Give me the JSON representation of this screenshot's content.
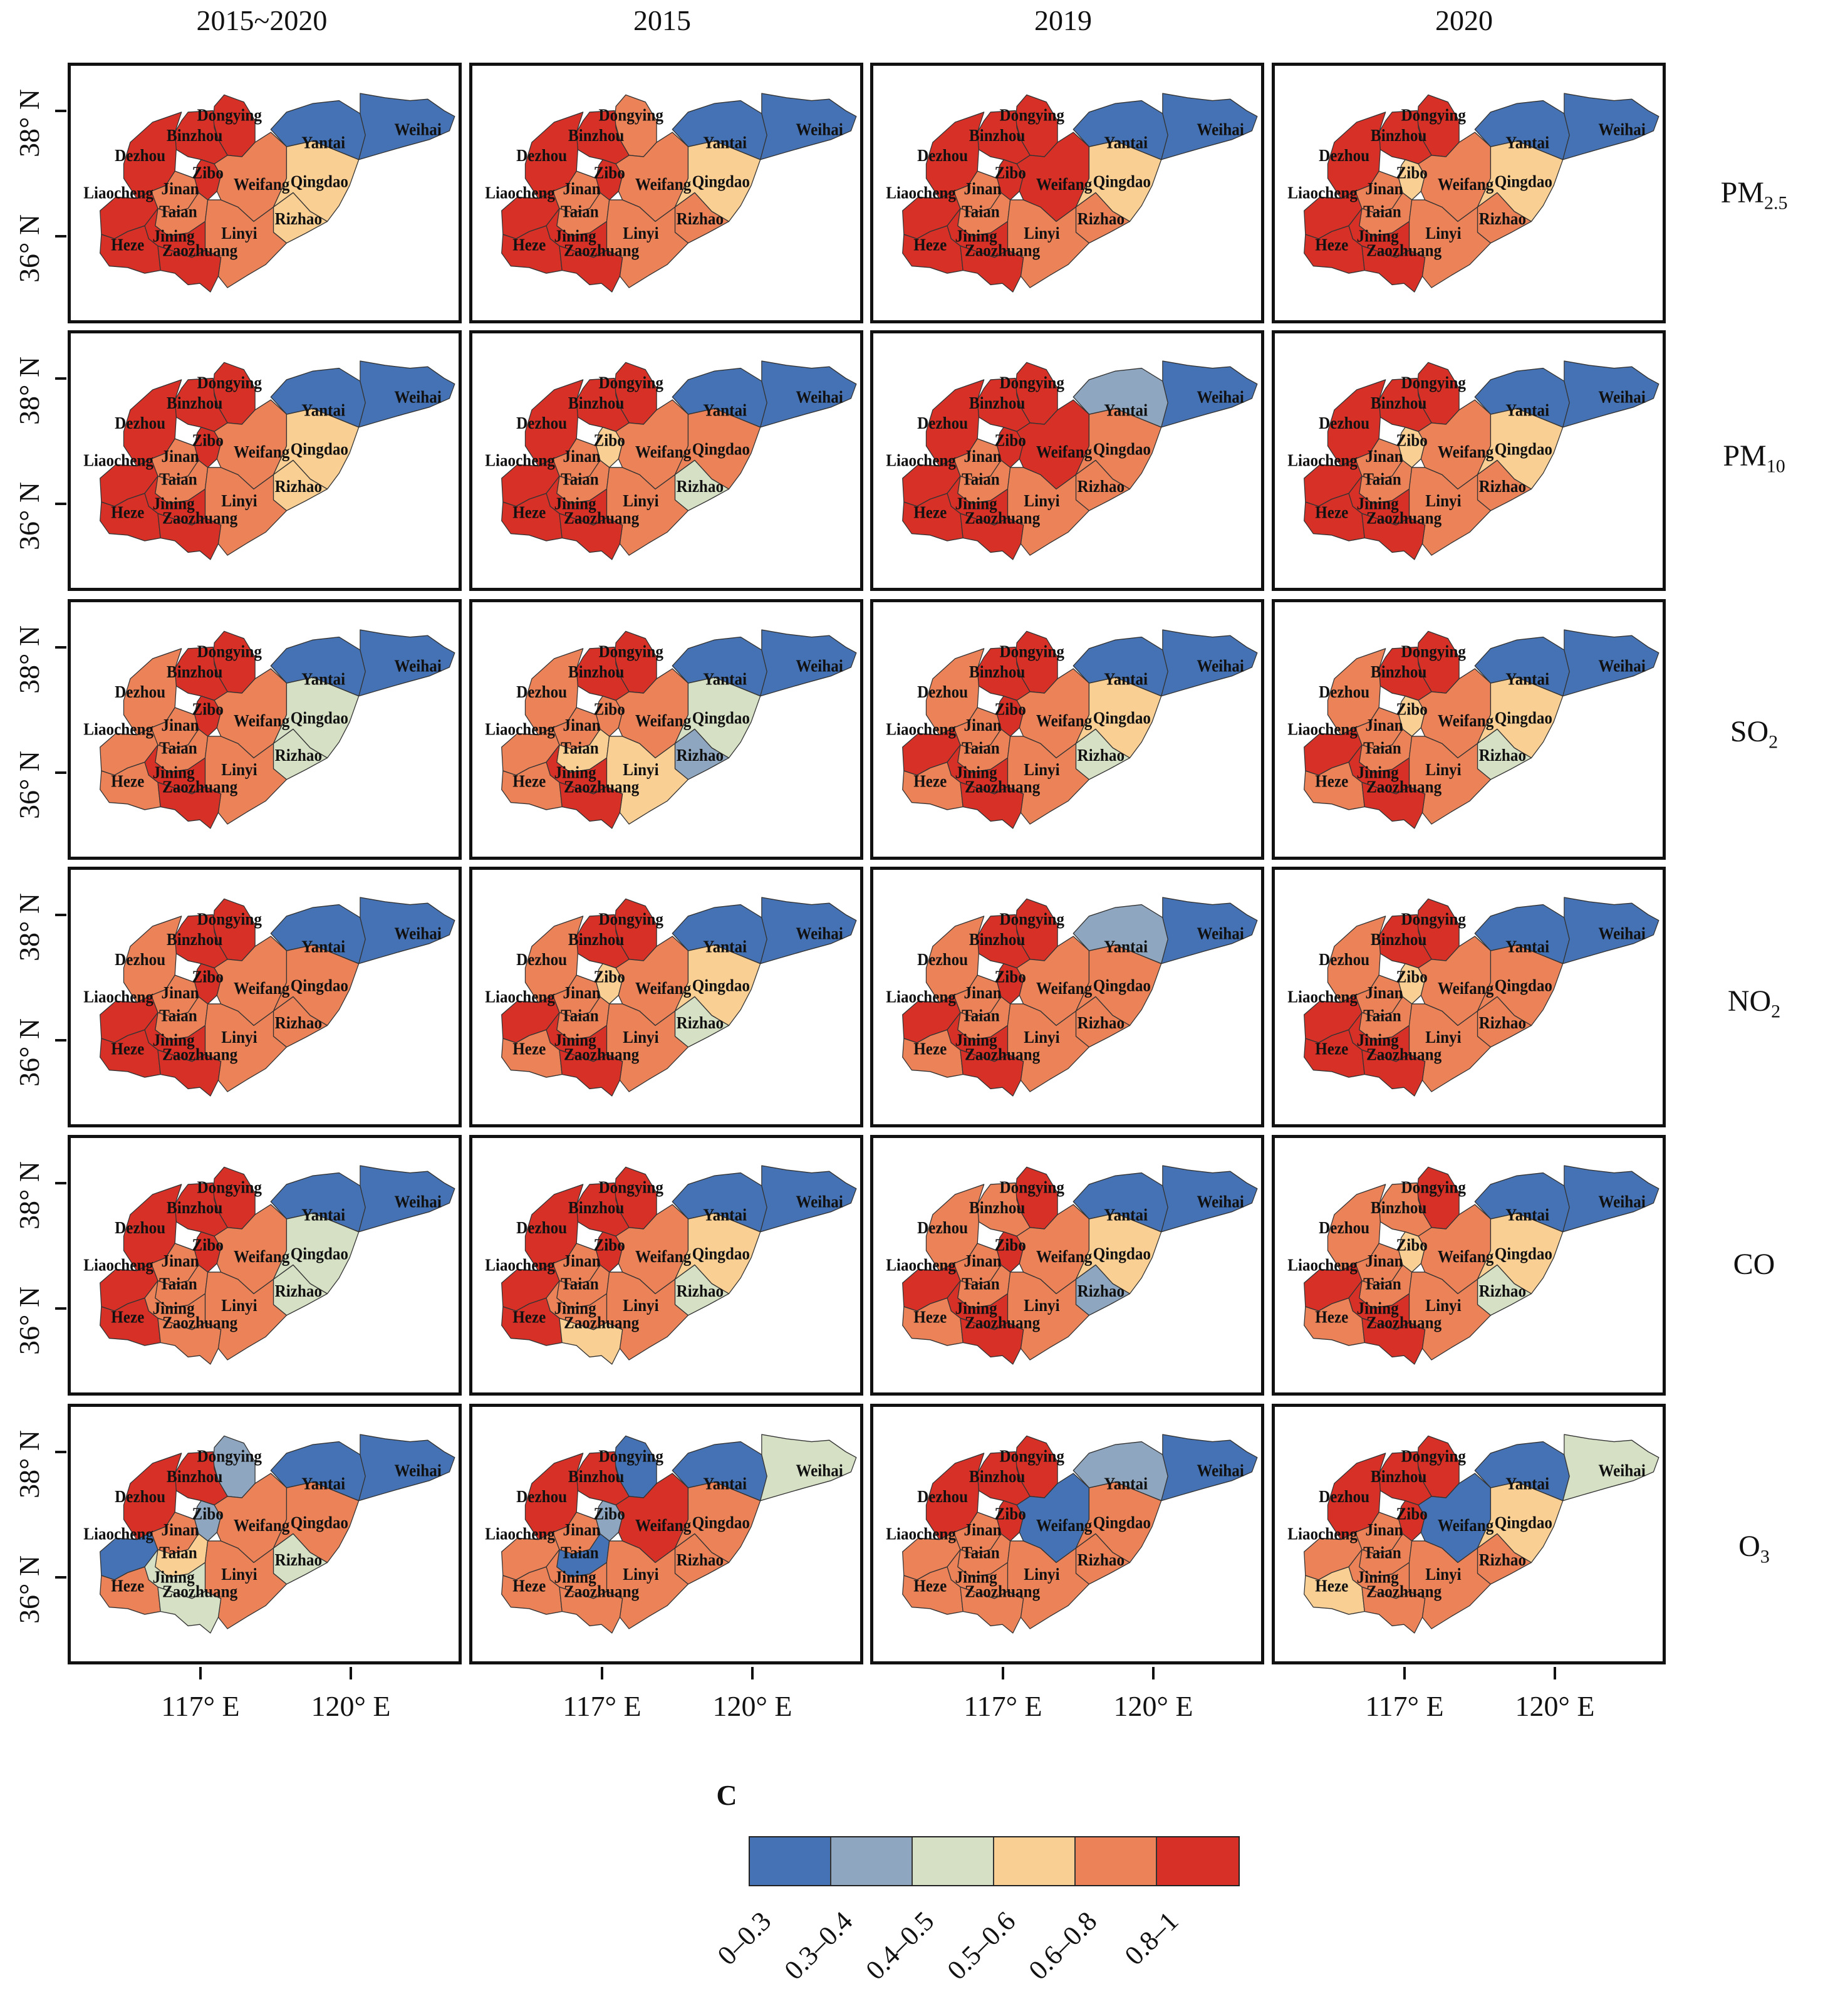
{
  "columns": [
    "2015~2020",
    "2015",
    "2019",
    "2020"
  ],
  "rows": [
    {
      "base": "PM",
      "sub": "2.5"
    },
    {
      "base": "PM",
      "sub": "10"
    },
    {
      "base": "SO",
      "sub": "2"
    },
    {
      "base": "NO",
      "sub": "2"
    },
    {
      "base": "CO",
      "sub": ""
    },
    {
      "base": "O",
      "sub": "3"
    }
  ],
  "y_ticks": [
    "38° N",
    "36° N"
  ],
  "x_ticks": [
    "117° E",
    "120° E"
  ],
  "cities": [
    "Dongying",
    "Binzhou",
    "Dezhou",
    "Zibo",
    "Liaocheng",
    "Jinan",
    "Weifang",
    "Qingdao",
    "Yantai",
    "Weihai",
    "Taian",
    "Rizhao",
    "Linyi",
    "Jining",
    "Heze",
    "Zaozhuang"
  ],
  "legend": {
    "title": "C",
    "classes": [
      "0–0.3",
      "0.3–0.4",
      "0.4–0.5",
      "0.5–0.6",
      "0.6–0.8",
      "0.8–1"
    ],
    "colors": [
      "#4472b4",
      "#8ea6bf",
      "#d6e0c5",
      "#f9cf93",
      "#ec8258",
      "#d73027"
    ]
  },
  "map_data": {
    "PM2.5": {
      "2015~2020": {
        "Dongying": 5,
        "Binzhou": 5,
        "Dezhou": 5,
        "Zibo": 5,
        "Liaocheng": 5,
        "Jinan": 4,
        "Weifang": 4,
        "Qingdao": 3,
        "Yantai": 0,
        "Weihai": 0,
        "Taian": 4,
        "Rizhao": 3,
        "Linyi": 4,
        "Jining": 5,
        "Heze": 5,
        "Zaozhuang": 5
      },
      "2015": {
        "Dongying": 4,
        "Binzhou": 5,
        "Dezhou": 5,
        "Zibo": 5,
        "Liaocheng": 5,
        "Jinan": 4,
        "Weifang": 4,
        "Qingdao": 3,
        "Yantai": 0,
        "Weihai": 0,
        "Taian": 4,
        "Rizhao": 4,
        "Linyi": 4,
        "Jining": 5,
        "Heze": 5,
        "Zaozhuang": 5
      },
      "2019": {
        "Dongying": 5,
        "Binzhou": 5,
        "Dezhou": 5,
        "Zibo": 5,
        "Liaocheng": 5,
        "Jinan": 4,
        "Weifang": 5,
        "Qingdao": 3,
        "Yantai": 0,
        "Weihai": 0,
        "Taian": 4,
        "Rizhao": 4,
        "Linyi": 4,
        "Jining": 5,
        "Heze": 5,
        "Zaozhuang": 5
      },
      "2020": {
        "Dongying": 5,
        "Binzhou": 5,
        "Dezhou": 5,
        "Zibo": 3,
        "Liaocheng": 5,
        "Jinan": 4,
        "Weifang": 4,
        "Qingdao": 3,
        "Yantai": 0,
        "Weihai": 0,
        "Taian": 4,
        "Rizhao": 4,
        "Linyi": 4,
        "Jining": 5,
        "Heze": 5,
        "Zaozhuang": 5
      }
    },
    "PM10": {
      "2015~2020": {
        "Dongying": 5,
        "Binzhou": 5,
        "Dezhou": 5,
        "Zibo": 5,
        "Liaocheng": 5,
        "Jinan": 4,
        "Weifang": 4,
        "Qingdao": 3,
        "Yantai": 0,
        "Weihai": 0,
        "Taian": 4,
        "Rizhao": 3,
        "Linyi": 4,
        "Jining": 5,
        "Heze": 5,
        "Zaozhuang": 5
      },
      "2015": {
        "Dongying": 5,
        "Binzhou": 5,
        "Dezhou": 5,
        "Zibo": 3,
        "Liaocheng": 5,
        "Jinan": 4,
        "Weifang": 4,
        "Qingdao": 4,
        "Yantai": 0,
        "Weihai": 0,
        "Taian": 4,
        "Rizhao": 2,
        "Linyi": 4,
        "Jining": 5,
        "Heze": 5,
        "Zaozhuang": 5
      },
      "2019": {
        "Dongying": 5,
        "Binzhou": 5,
        "Dezhou": 5,
        "Zibo": 5,
        "Liaocheng": 5,
        "Jinan": 4,
        "Weifang": 5,
        "Qingdao": 4,
        "Yantai": 1,
        "Weihai": 0,
        "Taian": 4,
        "Rizhao": 4,
        "Linyi": 4,
        "Jining": 5,
        "Heze": 5,
        "Zaozhuang": 5
      },
      "2020": {
        "Dongying": 5,
        "Binzhou": 5,
        "Dezhou": 5,
        "Zibo": 3,
        "Liaocheng": 5,
        "Jinan": 4,
        "Weifang": 4,
        "Qingdao": 3,
        "Yantai": 0,
        "Weihai": 0,
        "Taian": 4,
        "Rizhao": 4,
        "Linyi": 4,
        "Jining": 5,
        "Heze": 5,
        "Zaozhuang": 5
      }
    },
    "SO2": {
      "2015~2020": {
        "Dongying": 5,
        "Binzhou": 5,
        "Dezhou": 4,
        "Zibo": 5,
        "Liaocheng": 4,
        "Jinan": 4,
        "Weifang": 4,
        "Qingdao": 2,
        "Yantai": 0,
        "Weihai": 0,
        "Taian": 4,
        "Rizhao": 2,
        "Linyi": 4,
        "Jining": 5,
        "Heze": 4,
        "Zaozhuang": 5
      },
      "2015": {
        "Dongying": 5,
        "Binzhou": 5,
        "Dezhou": 4,
        "Zibo": 4,
        "Liaocheng": 4,
        "Jinan": 4,
        "Weifang": 4,
        "Qingdao": 2,
        "Yantai": 0,
        "Weihai": 0,
        "Taian": 3,
        "Rizhao": 1,
        "Linyi": 3,
        "Jining": 5,
        "Heze": 4,
        "Zaozhuang": 5
      },
      "2019": {
        "Dongying": 5,
        "Binzhou": 5,
        "Dezhou": 4,
        "Zibo": 5,
        "Liaocheng": 5,
        "Jinan": 4,
        "Weifang": 4,
        "Qingdao": 3,
        "Yantai": 0,
        "Weihai": 0,
        "Taian": 4,
        "Rizhao": 2,
        "Linyi": 4,
        "Jining": 5,
        "Heze": 4,
        "Zaozhuang": 5
      },
      "2020": {
        "Dongying": 5,
        "Binzhou": 5,
        "Dezhou": 4,
        "Zibo": 3,
        "Liaocheng": 5,
        "Jinan": 4,
        "Weifang": 4,
        "Qingdao": 3,
        "Yantai": 0,
        "Weihai": 0,
        "Taian": 4,
        "Rizhao": 2,
        "Linyi": 4,
        "Jining": 5,
        "Heze": 4,
        "Zaozhuang": 5
      }
    },
    "NO2": {
      "2015~2020": {
        "Dongying": 5,
        "Binzhou": 5,
        "Dezhou": 4,
        "Zibo": 5,
        "Liaocheng": 5,
        "Jinan": 4,
        "Weifang": 4,
        "Qingdao": 4,
        "Yantai": 0,
        "Weihai": 0,
        "Taian": 4,
        "Rizhao": 4,
        "Linyi": 4,
        "Jining": 5,
        "Heze": 5,
        "Zaozhuang": 5
      },
      "2015": {
        "Dongying": 5,
        "Binzhou": 5,
        "Dezhou": 4,
        "Zibo": 3,
        "Liaocheng": 5,
        "Jinan": 4,
        "Weifang": 4,
        "Qingdao": 3,
        "Yantai": 0,
        "Weihai": 0,
        "Taian": 4,
        "Rizhao": 2,
        "Linyi": 4,
        "Jining": 5,
        "Heze": 4,
        "Zaozhuang": 5
      },
      "2019": {
        "Dongying": 5,
        "Binzhou": 5,
        "Dezhou": 4,
        "Zibo": 5,
        "Liaocheng": 5,
        "Jinan": 4,
        "Weifang": 4,
        "Qingdao": 4,
        "Yantai": 1,
        "Weihai": 0,
        "Taian": 4,
        "Rizhao": 4,
        "Linyi": 4,
        "Jining": 5,
        "Heze": 4,
        "Zaozhuang": 5
      },
      "2020": {
        "Dongying": 5,
        "Binzhou": 5,
        "Dezhou": 4,
        "Zibo": 3,
        "Liaocheng": 5,
        "Jinan": 4,
        "Weifang": 4,
        "Qingdao": 4,
        "Yantai": 0,
        "Weihai": 0,
        "Taian": 4,
        "Rizhao": 4,
        "Linyi": 4,
        "Jining": 5,
        "Heze": 5,
        "Zaozhuang": 5
      }
    },
    "CO": {
      "2015~2020": {
        "Dongying": 5,
        "Binzhou": 5,
        "Dezhou": 5,
        "Zibo": 5,
        "Liaocheng": 5,
        "Jinan": 4,
        "Weifang": 4,
        "Qingdao": 2,
        "Yantai": 0,
        "Weihai": 0,
        "Taian": 4,
        "Rizhao": 2,
        "Linyi": 4,
        "Jining": 4,
        "Heze": 5,
        "Zaozhuang": 4
      },
      "2015": {
        "Dongying": 5,
        "Binzhou": 5,
        "Dezhou": 5,
        "Zibo": 5,
        "Liaocheng": 5,
        "Jinan": 4,
        "Weifang": 4,
        "Qingdao": 3,
        "Yantai": 0,
        "Weihai": 0,
        "Taian": 4,
        "Rizhao": 2,
        "Linyi": 4,
        "Jining": 4,
        "Heze": 5,
        "Zaozhuang": 3
      },
      "2019": {
        "Dongying": 5,
        "Binzhou": 4,
        "Dezhou": 4,
        "Zibo": 5,
        "Liaocheng": 5,
        "Jinan": 4,
        "Weifang": 4,
        "Qingdao": 3,
        "Yantai": 0,
        "Weihai": 0,
        "Taian": 4,
        "Rizhao": 1,
        "Linyi": 4,
        "Jining": 5,
        "Heze": 4,
        "Zaozhuang": 5
      },
      "2020": {
        "Dongying": 5,
        "Binzhou": 4,
        "Dezhou": 4,
        "Zibo": 3,
        "Liaocheng": 5,
        "Jinan": 4,
        "Weifang": 4,
        "Qingdao": 3,
        "Yantai": 0,
        "Weihai": 0,
        "Taian": 4,
        "Rizhao": 2,
        "Linyi": 4,
        "Jining": 5,
        "Heze": 4,
        "Zaozhuang": 5
      }
    },
    "O3": {
      "2015~2020": {
        "Dongying": 1,
        "Binzhou": 5,
        "Dezhou": 5,
        "Zibo": 1,
        "Liaocheng": 0,
        "Jinan": 4,
        "Weifang": 4,
        "Qingdao": 4,
        "Yantai": 0,
        "Weihai": 0,
        "Taian": 3,
        "Rizhao": 2,
        "Linyi": 4,
        "Jining": 2,
        "Heze": 4,
        "Zaozhuang": 2
      },
      "2015": {
        "Dongying": 0,
        "Binzhou": 5,
        "Dezhou": 5,
        "Zibo": 1,
        "Liaocheng": 4,
        "Jinan": 4,
        "Weifang": 5,
        "Qingdao": 4,
        "Yantai": 0,
        "Weihai": 2,
        "Taian": 0,
        "Rizhao": 4,
        "Linyi": 4,
        "Jining": 4,
        "Heze": 4,
        "Zaozhuang": 4
      },
      "2019": {
        "Dongying": 5,
        "Binzhou": 5,
        "Dezhou": 5,
        "Zibo": 5,
        "Liaocheng": 4,
        "Jinan": 4,
        "Weifang": 0,
        "Qingdao": 4,
        "Yantai": 1,
        "Weihai": 0,
        "Taian": 4,
        "Rizhao": 4,
        "Linyi": 4,
        "Jining": 4,
        "Heze": 4,
        "Zaozhuang": 4
      },
      "2020": {
        "Dongying": 5,
        "Binzhou": 5,
        "Dezhou": 5,
        "Zibo": 5,
        "Liaocheng": 4,
        "Jinan": 4,
        "Weifang": 0,
        "Qingdao": 3,
        "Yantai": 0,
        "Weihai": 2,
        "Taian": 4,
        "Rizhao": 4,
        "Linyi": 4,
        "Jining": 4,
        "Heze": 3,
        "Zaozhuang": 4
      }
    }
  }
}
